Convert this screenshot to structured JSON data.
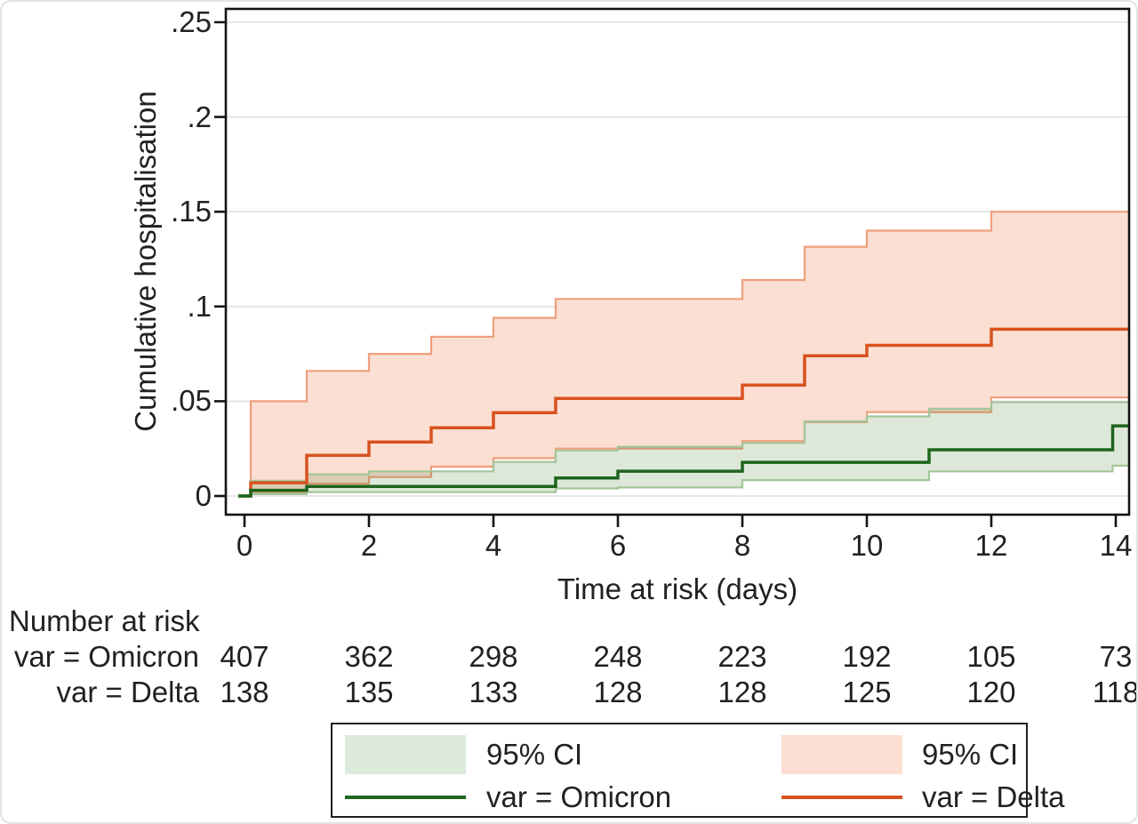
{
  "y_axis": {
    "title": "Cumulative hospitalisation",
    "ticks": [
      {
        "label": ".25",
        "value": 0.25
      },
      {
        "label": ".2",
        "value": 0.2
      },
      {
        "label": ".15",
        "value": 0.15
      },
      {
        "label": ".1",
        "value": 0.1
      },
      {
        "label": ".05",
        "value": 0.05
      },
      {
        "label": "0",
        "value": 0
      }
    ]
  },
  "x_axis": {
    "title": "Time at risk (days)",
    "ticks": [
      {
        "label": "0",
        "value": 0
      },
      {
        "label": "2",
        "value": 2
      },
      {
        "label": "4",
        "value": 4
      },
      {
        "label": "6",
        "value": 6
      },
      {
        "label": "8",
        "value": 8
      },
      {
        "label": "10",
        "value": 10
      },
      {
        "label": "12",
        "value": 12
      },
      {
        "label": "14",
        "value": 14
      }
    ]
  },
  "risk_table": {
    "title": "Number at risk",
    "tick_days": [
      0,
      2,
      4,
      6,
      8,
      10,
      12,
      14
    ],
    "rows": [
      {
        "label": "var = Omicron",
        "counts": [
          "407",
          "362",
          "298",
          "248",
          "223",
          "192",
          "105",
          "73"
        ]
      },
      {
        "label": "var = Delta",
        "counts": [
          "138",
          "135",
          "133",
          "128",
          "128",
          "125",
          "120",
          "118"
        ]
      }
    ]
  },
  "legend": {
    "items": [
      {
        "type": "fill",
        "color_key": "omicron_fill_solid",
        "label": "95% CI"
      },
      {
        "type": "fill",
        "color_key": "delta_fill",
        "label": "95% CI"
      },
      {
        "type": "line",
        "color_key": "omicron_line",
        "label": "var = Omicron"
      },
      {
        "type": "line",
        "color_key": "delta_line",
        "label": "var = Delta"
      }
    ]
  },
  "colors": {
    "omicron_line": "#1e651e",
    "delta_line": "#d8521f",
    "delta_fill": "#fbdfd3",
    "omicron_fill": "rgba(70,130,45,0.18)",
    "omicron_fill_solid": "#dceadb",
    "delta_ci_edge": "#ef9f7d",
    "omicron_ci_edge": "#a4c599",
    "grid": "#e0e0e0",
    "axis": "#141414",
    "text": "#212121"
  },
  "chart_data": {
    "type": "line",
    "subtype": "kaplan-meier-cumulative-incidence-step",
    "title": "",
    "xlabel": "Time at risk (days)",
    "ylabel": "Cumulative hospitalisation",
    "xlim": [
      -0.3,
      14.25
    ],
    "ylim": [
      0,
      0.25
    ],
    "grid": "horizontal",
    "legend_position": "bottom",
    "series": [
      {
        "name": "var = Omicron",
        "role": "line",
        "steps": [
          [
            -0.1,
            0
          ],
          [
            0.1,
            0.003
          ],
          [
            1,
            0.005
          ],
          [
            5,
            0.0095
          ],
          [
            6,
            0.0131
          ],
          [
            8,
            0.0178
          ],
          [
            11,
            0.0244
          ],
          [
            13.95,
            0.037
          ]
        ]
      },
      {
        "name": "Omicron 95% CI upper",
        "role": "ci_upper",
        "steps": [
          [
            0.1,
            0.008
          ],
          [
            1,
            0.0115
          ],
          [
            2,
            0.013
          ],
          [
            4,
            0.018
          ],
          [
            5,
            0.024
          ],
          [
            6,
            0.026
          ],
          [
            8,
            0.028
          ],
          [
            9,
            0.0394
          ],
          [
            10,
            0.042
          ],
          [
            11,
            0.046
          ],
          [
            12,
            0.0495
          ]
        ]
      },
      {
        "name": "Omicron 95% CI lower",
        "role": "ci_lower",
        "steps": [
          [
            0.1,
            0.001
          ],
          [
            1,
            0.002
          ],
          [
            5,
            0.004
          ],
          [
            6,
            0.0045
          ],
          [
            8,
            0.0084
          ],
          [
            11,
            0.013
          ],
          [
            13.95,
            0.016
          ]
        ]
      },
      {
        "name": "var = Delta",
        "role": "line",
        "steps": [
          [
            -0.1,
            0
          ],
          [
            0.1,
            0.007
          ],
          [
            1,
            0.0215
          ],
          [
            2,
            0.0285
          ],
          [
            3,
            0.036
          ],
          [
            4,
            0.044
          ],
          [
            5,
            0.0515
          ],
          [
            8,
            0.0585
          ],
          [
            9,
            0.074
          ],
          [
            10,
            0.0795
          ],
          [
            12,
            0.088
          ]
        ]
      },
      {
        "name": "Delta 95% CI upper",
        "role": "ci_upper",
        "steps": [
          [
            0.1,
            0.05
          ],
          [
            1,
            0.066
          ],
          [
            2,
            0.075
          ],
          [
            3,
            0.084
          ],
          [
            4,
            0.094
          ],
          [
            5,
            0.104
          ],
          [
            8,
            0.114
          ],
          [
            9,
            0.1315
          ],
          [
            10,
            0.14
          ],
          [
            12,
            0.15
          ]
        ]
      },
      {
        "name": "Delta 95% CI lower",
        "role": "ci_lower",
        "steps": [
          [
            0.1,
            0.002
          ],
          [
            1,
            0.0065
          ],
          [
            2,
            0.01
          ],
          [
            3,
            0.0155
          ],
          [
            4,
            0.02
          ],
          [
            5,
            0.025
          ],
          [
            8,
            0.029
          ],
          [
            9,
            0.039
          ],
          [
            10,
            0.0443
          ],
          [
            12,
            0.052
          ]
        ]
      }
    ]
  }
}
